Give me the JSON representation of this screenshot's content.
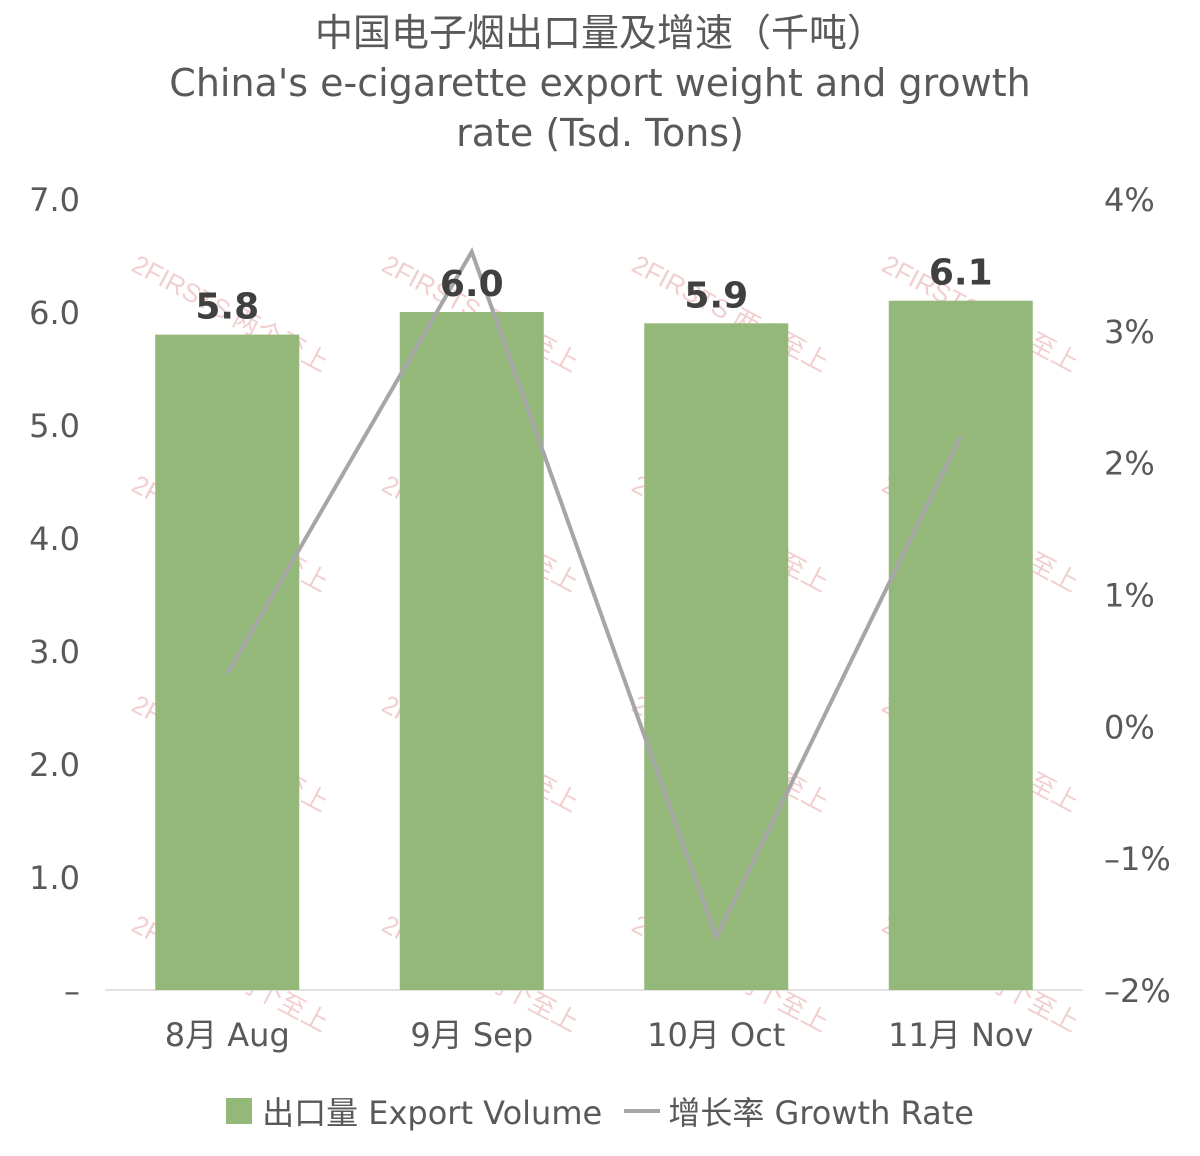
{
  "chart_data": {
    "type": "bar",
    "title_cn": "中国电子烟出口量及增速（千吨）",
    "title_en_line1": "China's e-cigarette export weight and growth",
    "title_en_line2": "rate (Tsd. Tons)",
    "categories": [
      "8月 Aug",
      "9月 Sep",
      "10月 Oct",
      "11月 Nov"
    ],
    "series": [
      {
        "name": "出口量 Export Volume",
        "type": "bar",
        "axis": "left",
        "values": [
          5.8,
          6.0,
          5.9,
          6.1
        ],
        "labels": [
          "5.8",
          "6.0",
          "5.9",
          "6.1"
        ],
        "color": "#93b87a"
      },
      {
        "name": "增长率 Growth Rate",
        "type": "line",
        "axis": "right",
        "values": [
          0.4,
          3.6,
          -1.6,
          2.2
        ],
        "color": "#a6a6a6"
      }
    ],
    "y_left": {
      "ylim": [
        0,
        7
      ],
      "ticks": [
        "–",
        "1.0",
        "2.0",
        "3.0",
        "4.0",
        "5.0",
        "6.0",
        "7.0"
      ]
    },
    "y_right": {
      "ylim": [
        -2,
        4
      ],
      "ticks": [
        "–2%",
        "–1%",
        "0%",
        "1%",
        "2%",
        "3%",
        "4%"
      ]
    },
    "grid": false,
    "legend_position": "bottom"
  },
  "legend": {
    "bar_label": "出口量 Export Volume",
    "line_label": "增长率 Growth Rate"
  },
  "watermark": {
    "text": "2FIRSTS 两个至上",
    "color": "#e8a8a8"
  }
}
